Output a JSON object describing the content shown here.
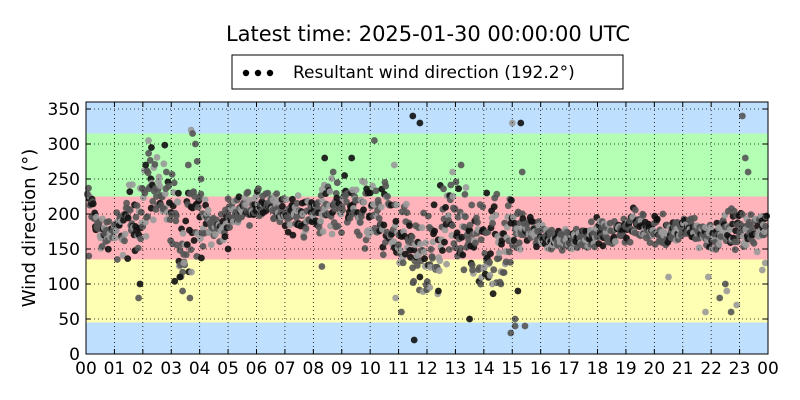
{
  "chart_data": {
    "type": "scatter",
    "title": "Latest time: 2025-01-30 00:00:00 UTC",
    "ylabel": "Wind direction (°)",
    "xlabel": "",
    "legend": {
      "label": "Resultant wind direction (192.2°)",
      "placement": "top-center",
      "marker": "•••"
    },
    "xlim": [
      0,
      24
    ],
    "ylim": [
      0,
      360
    ],
    "x_ticks": [
      "00",
      "01",
      "02",
      "03",
      "04",
      "05",
      "06",
      "07",
      "08",
      "09",
      "10",
      "11",
      "12",
      "13",
      "14",
      "15",
      "16",
      "17",
      "18",
      "19",
      "20",
      "21",
      "22",
      "23",
      "00"
    ],
    "y_ticks": [
      0,
      50,
      100,
      150,
      200,
      250,
      300,
      350
    ],
    "grid": true,
    "bands": [
      {
        "from": 0,
        "to": 45,
        "color": "#bfdfff"
      },
      {
        "from": 45,
        "to": 135,
        "color": "#ffffb3"
      },
      {
        "from": 135,
        "to": 225,
        "color": "#ffb3ba"
      },
      {
        "from": 225,
        "to": 315,
        "color": "#b3ffb3"
      },
      {
        "from": 315,
        "to": 360,
        "color": "#bfdfff"
      }
    ],
    "series_trend": {
      "name": "Resultant wind direction (192.2°)",
      "hours": [
        0.05,
        0.5,
        1.0,
        1.5,
        2.0,
        2.3,
        2.7,
        3.0,
        3.4,
        3.8,
        4.2,
        4.7,
        5.2,
        5.7,
        6.2,
        6.7,
        7.2,
        7.7,
        8.2,
        8.7,
        9.2,
        9.7,
        10.2,
        10.7,
        11.2,
        11.6,
        12.0,
        12.5,
        13.0,
        13.5,
        14.0,
        14.5,
        15.0,
        15.5,
        16.0,
        16.5,
        17.0,
        17.5,
        18.0,
        18.5,
        19.0,
        19.5,
        20.0,
        20.5,
        21.0,
        21.5,
        22.0,
        22.5,
        23.0,
        23.5,
        23.95
      ],
      "directions": [
        228,
        170,
        178,
        185,
        210,
        250,
        225,
        190,
        160,
        200,
        190,
        178,
        205,
        210,
        212,
        208,
        200,
        195,
        205,
        210,
        215,
        205,
        200,
        180,
        150,
        135,
        130,
        155,
        200,
        160,
        150,
        160,
        175,
        180,
        170,
        162,
        165,
        168,
        175,
        170,
        180,
        185,
        178,
        170,
        180,
        175,
        168,
        175,
        180,
        175,
        190
      ],
      "spread": [
        12,
        20,
        12,
        40,
        40,
        40,
        40,
        50,
        50,
        60,
        20,
        15,
        15,
        15,
        15,
        15,
        20,
        20,
        25,
        30,
        25,
        30,
        35,
        40,
        45,
        40,
        45,
        50,
        50,
        45,
        45,
        55,
        30,
        15,
        12,
        12,
        12,
        12,
        12,
        12,
        15,
        15,
        15,
        15,
        12,
        15,
        15,
        20,
        25,
        20,
        15
      ]
    },
    "outliers": [
      [
        0.05,
        228
      ],
      [
        0.1,
        140
      ],
      [
        1.1,
        135
      ],
      [
        1.9,
        100
      ],
      [
        1.85,
        80
      ],
      [
        2.2,
        305
      ],
      [
        2.3,
        295
      ],
      [
        2.1,
        270
      ],
      [
        3.4,
        90
      ],
      [
        3.3,
        110
      ],
      [
        3.45,
        130
      ],
      [
        3.7,
        320
      ],
      [
        3.75,
        315
      ],
      [
        3.85,
        300
      ],
      [
        3.6,
        270
      ],
      [
        3.7,
        210
      ],
      [
        4.05,
        250
      ],
      [
        5.0,
        150
      ],
      [
        8.3,
        125
      ],
      [
        8.4,
        280
      ],
      [
        8.7,
        260
      ],
      [
        9.1,
        255
      ],
      [
        9.35,
        280
      ],
      [
        10.15,
        305
      ],
      [
        10.55,
        240
      ],
      [
        10.85,
        270
      ],
      [
        10.9,
        80
      ],
      [
        11.1,
        60
      ],
      [
        11.5,
        340
      ],
      [
        11.55,
        20
      ],
      [
        11.75,
        330
      ],
      [
        12.1,
        95
      ],
      [
        12.4,
        90
      ],
      [
        12.9,
        260
      ],
      [
        13.2,
        270
      ],
      [
        13.5,
        50
      ],
      [
        13.6,
        120
      ],
      [
        14.1,
        230
      ],
      [
        14.3,
        100
      ],
      [
        14.6,
        100
      ],
      [
        15.0,
        330
      ],
      [
        15.3,
        330
      ],
      [
        15.35,
        260
      ],
      [
        15.1,
        40
      ],
      [
        14.95,
        30
      ],
      [
        15.45,
        40
      ],
      [
        15.1,
        50
      ],
      [
        15.2,
        90
      ],
      [
        20.3,
        200
      ],
      [
        20.5,
        110
      ],
      [
        21.8,
        60
      ],
      [
        21.9,
        110
      ],
      [
        22.3,
        80
      ],
      [
        22.5,
        100
      ],
      [
        22.55,
        90
      ],
      [
        22.7,
        60
      ],
      [
        22.9,
        70
      ],
      [
        23.1,
        340
      ],
      [
        23.2,
        280
      ],
      [
        23.3,
        260
      ],
      [
        23.8,
        120
      ],
      [
        23.9,
        130
      ]
    ],
    "colors": {
      "marker_dark": "#111111",
      "marker_mid": "#555555",
      "marker_light": "#9a9a9a",
      "grid": "#000000"
    }
  }
}
